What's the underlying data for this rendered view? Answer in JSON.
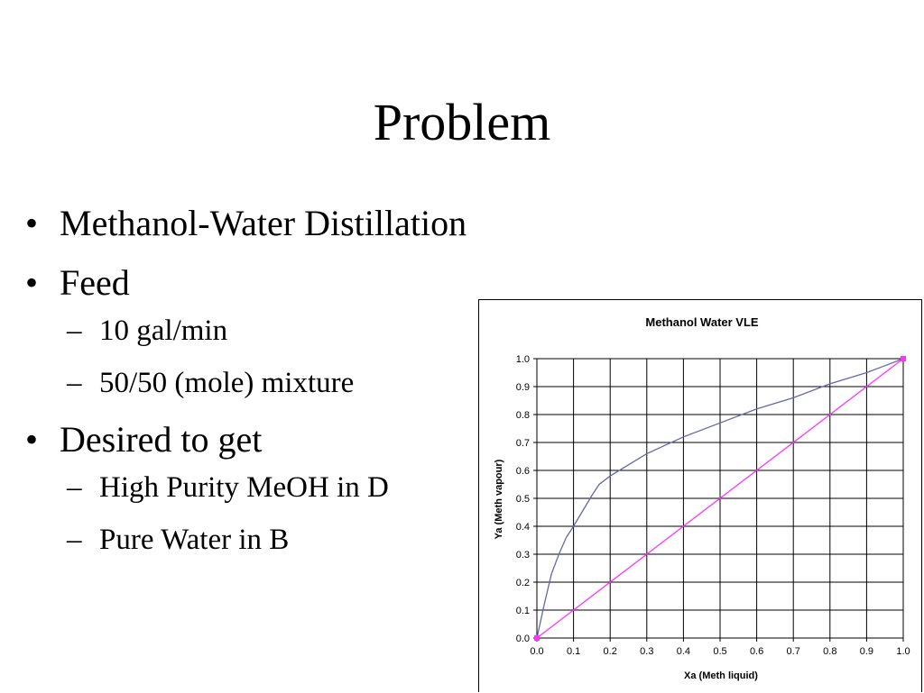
{
  "slide": {
    "title": "Problem",
    "bullets": [
      {
        "text": "Methanol-Water Distillation",
        "subs": []
      },
      {
        "text": "Feed",
        "subs": [
          "10 gal/min",
          "50/50 (mole) mixture"
        ]
      },
      {
        "text": "Desired to get",
        "subs": [
          "High Purity MeOH in D",
          "Pure Water in B"
        ]
      }
    ],
    "bullet_mark": "•",
    "sub_mark": "–"
  },
  "chart_data": {
    "type": "line",
    "title": "Methanol Water VLE",
    "xlabel": "Xa (Meth liquid)",
    "ylabel": "Ya (Meth vapour)",
    "xlim": [
      0,
      1
    ],
    "ylim": [
      0,
      1
    ],
    "x_ticks": [
      "0.0",
      "0.1",
      "0.2",
      "0.3",
      "0.4",
      "0.5",
      "0.6",
      "0.7",
      "0.8",
      "0.9",
      "1.0"
    ],
    "y_ticks": [
      "0.0",
      "0.1",
      "0.2",
      "0.3",
      "0.4",
      "0.5",
      "0.6",
      "0.7",
      "0.8",
      "0.9",
      "1.0"
    ],
    "grid": true,
    "series": [
      {
        "color": "#6666aa",
        "x": [
          0.0,
          0.01,
          0.02,
          0.04,
          0.06,
          0.08,
          0.1,
          0.15,
          0.17,
          0.2,
          0.3,
          0.4,
          0.5,
          0.6,
          0.7,
          0.8,
          0.9,
          0.95,
          1.0
        ],
        "y": [
          0.0,
          0.06,
          0.12,
          0.23,
          0.3,
          0.36,
          0.4,
          0.51,
          0.55,
          0.58,
          0.66,
          0.72,
          0.77,
          0.82,
          0.86,
          0.91,
          0.95,
          0.975,
          1.0
        ]
      },
      {
        "color": "#ff33ff",
        "x": [
          0.0,
          1.0
        ],
        "y": [
          0.0,
          1.0
        ],
        "endpoint_markers": true
      }
    ]
  }
}
